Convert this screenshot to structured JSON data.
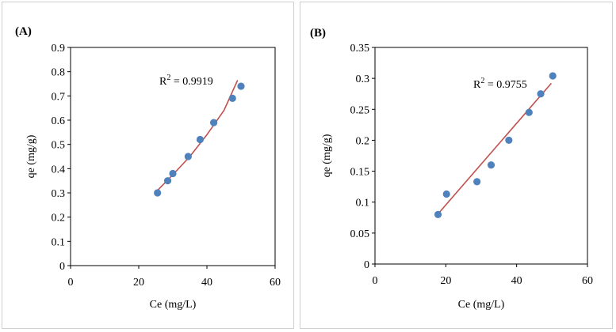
{
  "chart_data": [
    {
      "type": "scatter",
      "panel_label": "(A)",
      "xlabel": "Ce (mg/L)",
      "ylabel": "qe (mg/g)",
      "xlim": [
        0,
        60
      ],
      "ylim": [
        0,
        0.9
      ],
      "xticks": [
        0,
        20,
        40,
        60
      ],
      "xtick_labels": [
        "0",
        "20",
        "40",
        "60"
      ],
      "yticks": [
        0,
        0.1,
        0.2,
        0.3,
        0.4,
        0.5,
        0.6,
        0.7,
        0.8,
        0.9
      ],
      "ytick_labels": [
        "0",
        "0.1",
        "0.2",
        "0.3",
        "0.4",
        "0.5",
        "0.6",
        "0.7",
        "0.8",
        "0.9"
      ],
      "grid": false,
      "marker_color": "#4f81bd",
      "trendline_color": "#c0504d",
      "points": [
        {
          "x": 25.5,
          "y": 0.3
        },
        {
          "x": 28.5,
          "y": 0.35
        },
        {
          "x": 30.0,
          "y": 0.38
        },
        {
          "x": 34.5,
          "y": 0.45
        },
        {
          "x": 38.0,
          "y": 0.52
        },
        {
          "x": 42.0,
          "y": 0.59
        },
        {
          "x": 47.5,
          "y": 0.69
        },
        {
          "x": 50.0,
          "y": 0.74
        }
      ],
      "trendline": {
        "kind": "curve",
        "points": [
          {
            "x": 25.5,
            "y": 0.31
          },
          {
            "x": 30.0,
            "y": 0.375
          },
          {
            "x": 35.0,
            "y": 0.45
          },
          {
            "x": 40.0,
            "y": 0.54
          },
          {
            "x": 45.0,
            "y": 0.64
          },
          {
            "x": 49.0,
            "y": 0.765
          }
        ]
      },
      "r2": {
        "prefix": "R",
        "sup": "2",
        "suffix": " = 0.9919"
      }
    },
    {
      "type": "scatter",
      "panel_label": "(B)",
      "xlabel": "Ce (mg/L)",
      "ylabel": "qe (mg/g)",
      "xlim": [
        0,
        60
      ],
      "ylim": [
        0,
        0.35
      ],
      "xticks": [
        0,
        20,
        40,
        60
      ],
      "xtick_labels": [
        "0",
        "20",
        "40",
        "60"
      ],
      "yticks": [
        0,
        0.05,
        0.1,
        0.15,
        0.2,
        0.25,
        0.3,
        0.35
      ],
      "ytick_labels": [
        "0",
        "0.05",
        "0.1",
        "0.15",
        "0.2",
        "0.25",
        "0.3",
        "0.35"
      ],
      "grid": false,
      "marker_color": "#4f81bd",
      "trendline_color": "#c0504d",
      "points": [
        {
          "x": 17.8,
          "y": 0.08
        },
        {
          "x": 20.2,
          "y": 0.113
        },
        {
          "x": 28.8,
          "y": 0.133
        },
        {
          "x": 32.8,
          "y": 0.16
        },
        {
          "x": 37.8,
          "y": 0.2
        },
        {
          "x": 43.5,
          "y": 0.245
        },
        {
          "x": 46.8,
          "y": 0.275
        },
        {
          "x": 50.2,
          "y": 0.304
        }
      ],
      "trendline": {
        "kind": "line",
        "points": [
          {
            "x": 17.8,
            "y": 0.081
          },
          {
            "x": 49.8,
            "y": 0.292
          }
        ]
      },
      "r2": {
        "prefix": "R",
        "sup": "2",
        "suffix": " = 0.9755"
      }
    }
  ]
}
